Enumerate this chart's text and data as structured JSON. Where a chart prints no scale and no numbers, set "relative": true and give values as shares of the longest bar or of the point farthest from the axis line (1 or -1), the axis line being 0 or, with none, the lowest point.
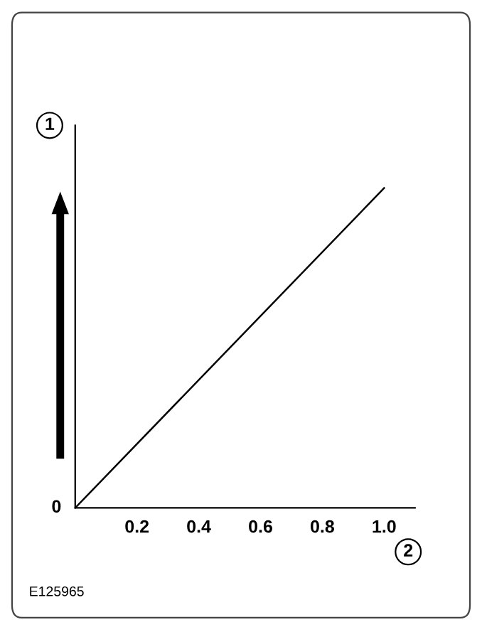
{
  "chart_data": {
    "type": "line",
    "relative": true,
    "x": [
      0,
      1.0
    ],
    "series": [
      {
        "color": "#000000",
        "values": [
          0,
          1
        ]
      }
    ],
    "xlim": [
      0,
      1.1
    ],
    "xticks": [
      0.2,
      0.4,
      0.6,
      0.8,
      {
        "value": 1.0,
        "label": "1.0"
      }
    ],
    "xlabel": "2",
    "ylabel": "1",
    "annotations": [
      {
        "text": "0",
        "x": 0,
        "y": 0
      },
      "E125965"
    ],
    "grid": false,
    "legend": false,
    "marker": "none",
    "line_style": "solid"
  }
}
